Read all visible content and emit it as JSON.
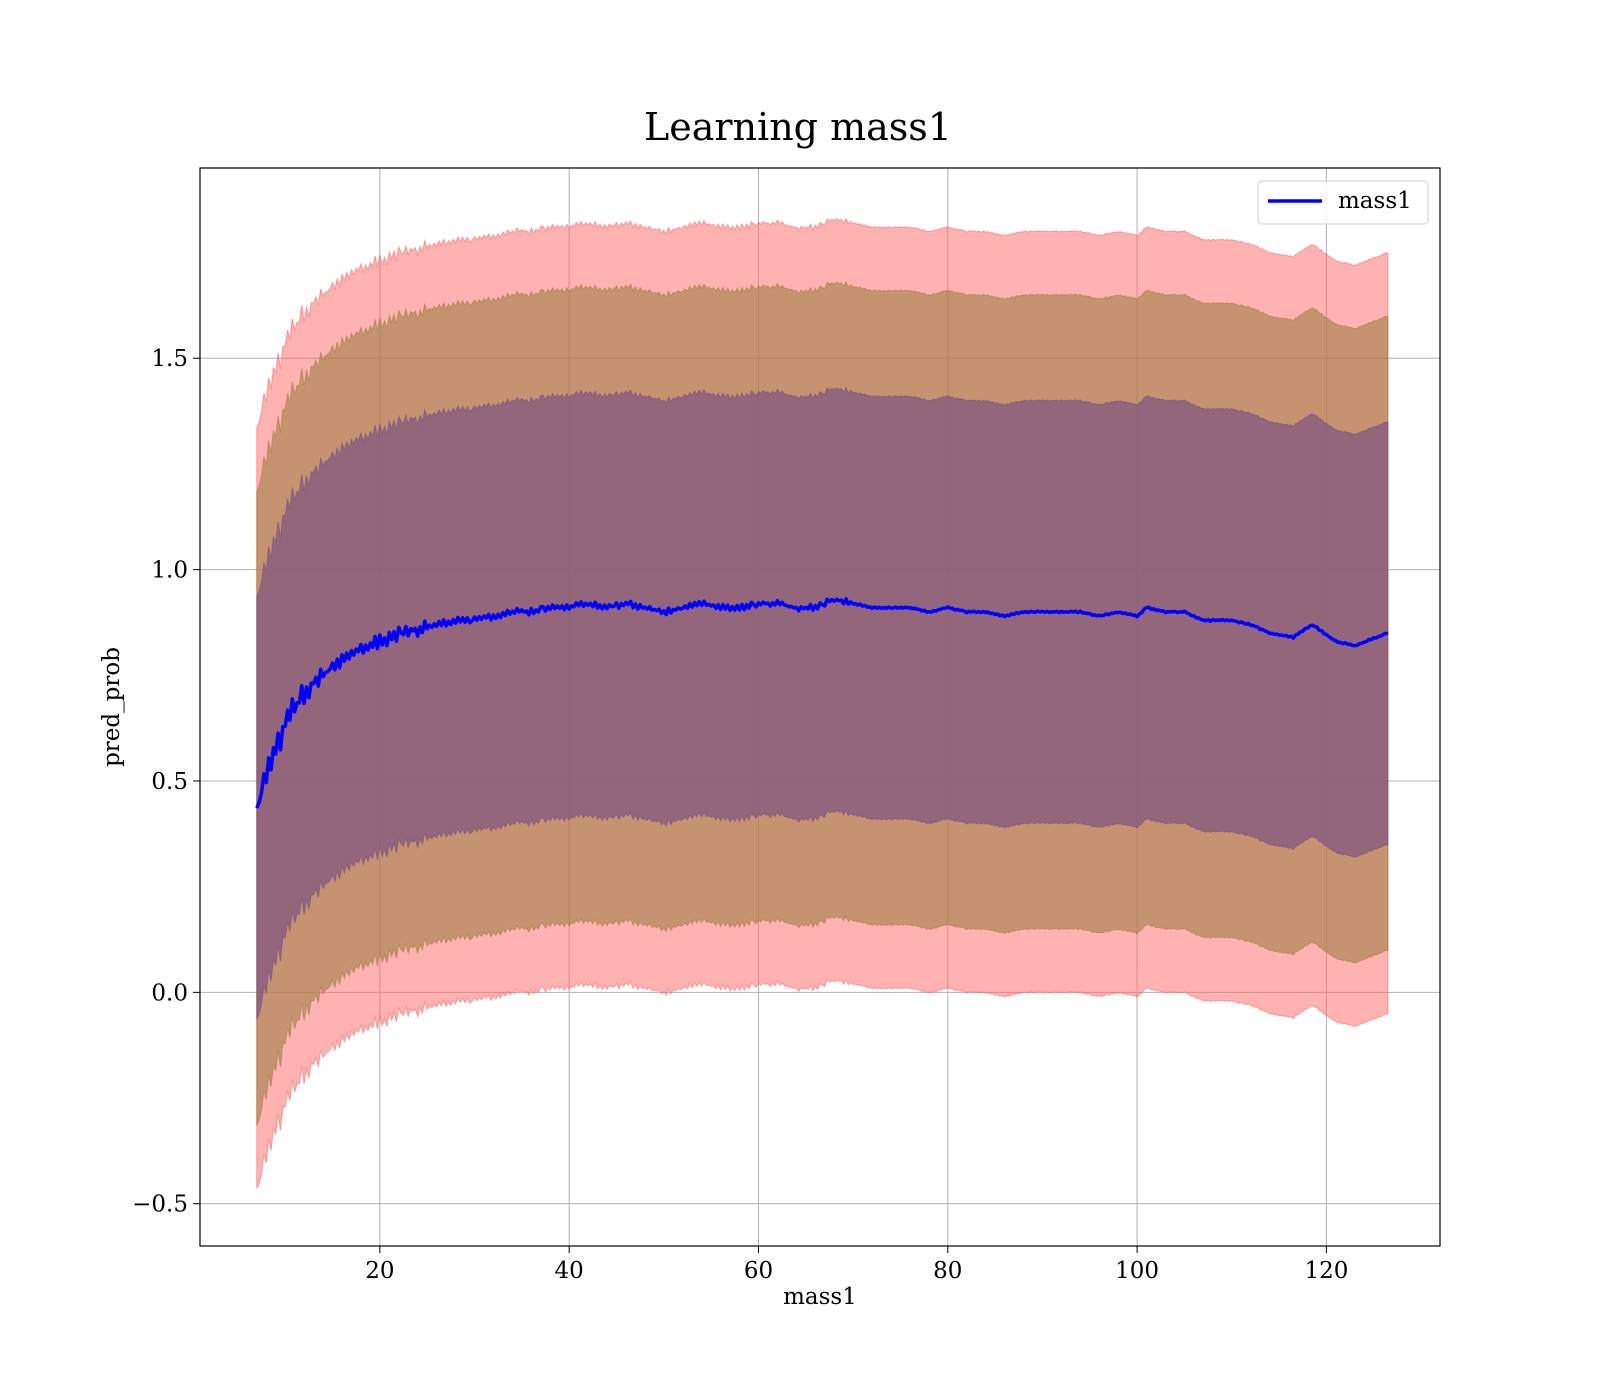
{
  "chart_data": {
    "type": "line",
    "title": "Learning mass1",
    "xlabel": "mass1",
    "ylabel": "pred_prob",
    "xlim": [
      1.0,
      132.0
    ],
    "ylim": [
      -0.6,
      1.95
    ],
    "xticks": [
      20,
      40,
      60,
      80,
      100,
      120
    ],
    "yticks": [
      -0.5,
      0.0,
      0.5,
      1.0,
      1.5
    ],
    "ytick_labels": [
      "−0.5",
      "0.0",
      "0.5",
      "1.0",
      "1.5"
    ],
    "grid": true,
    "legend": {
      "placement": "top-right",
      "entries": [
        "mass1"
      ]
    },
    "colors": {
      "line": "#0000ff",
      "band_outer": "#ff6666",
      "band_middle": "#9e7f45",
      "band_inner": "#7a4f82"
    },
    "series": [
      {
        "name": "mass1",
        "x": [
          7,
          8,
          9,
          10,
          11,
          12,
          13,
          14,
          15,
          16,
          17,
          18,
          19,
          20,
          22,
          24,
          26,
          28,
          30,
          32,
          34,
          36,
          38,
          40,
          42,
          44,
          46,
          48,
          50,
          52,
          54,
          56,
          58,
          60,
          62,
          64,
          66,
          68,
          70,
          72,
          74,
          76,
          78,
          80,
          82,
          84,
          86,
          88,
          90,
          92,
          94,
          96,
          98,
          100,
          101,
          103,
          105,
          107,
          110,
          112,
          114,
          116.5,
          118.5,
          121,
          123,
          126.5
        ],
        "y": [
          0.43,
          0.52,
          0.58,
          0.63,
          0.67,
          0.7,
          0.73,
          0.75,
          0.77,
          0.78,
          0.8,
          0.81,
          0.82,
          0.83,
          0.85,
          0.86,
          0.87,
          0.88,
          0.88,
          0.89,
          0.9,
          0.9,
          0.91,
          0.91,
          0.92,
          0.91,
          0.92,
          0.91,
          0.9,
          0.91,
          0.92,
          0.91,
          0.91,
          0.92,
          0.92,
          0.91,
          0.91,
          0.93,
          0.92,
          0.91,
          0.91,
          0.91,
          0.9,
          0.91,
          0.9,
          0.9,
          0.89,
          0.9,
          0.9,
          0.9,
          0.9,
          0.89,
          0.9,
          0.89,
          0.91,
          0.9,
          0.9,
          0.88,
          0.88,
          0.87,
          0.85,
          0.84,
          0.87,
          0.83,
          0.82,
          0.85
        ],
        "band_half_widths": [
          0.5,
          0.75,
          0.9
        ]
      }
    ]
  }
}
